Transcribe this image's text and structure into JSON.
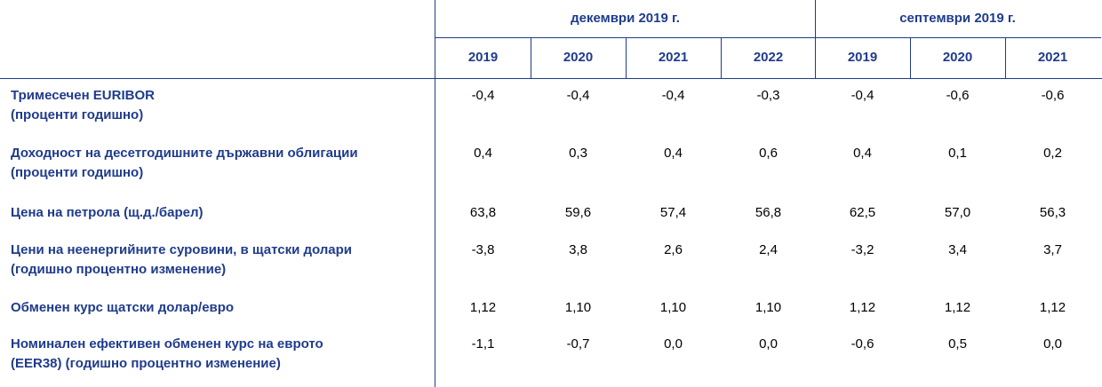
{
  "table": {
    "groups": [
      "декември 2019 г.",
      "септември 2019 г."
    ],
    "years": [
      "2019",
      "2020",
      "2021",
      "2022",
      "2019",
      "2020",
      "2021"
    ],
    "rows": [
      {
        "label": [
          "Тримесечен EURIBOR",
          "(проценти годишно)"
        ],
        "values": [
          "-0,4",
          "-0,4",
          "-0,4",
          "-0,3",
          "-0,4",
          "-0,6",
          "-0,6"
        ]
      },
      {
        "label": [
          "Доходност на десетгодишните държавни облигации",
          "(проценти годишно)"
        ],
        "values": [
          "0,4",
          "0,3",
          "0,4",
          "0,6",
          "0,4",
          "0,1",
          "0,2"
        ]
      },
      {
        "label": [
          "Цена на петрола (щ.д./барел)"
        ],
        "values": [
          "63,8",
          "59,6",
          "57,4",
          "56,8",
          "62,5",
          "57,0",
          "56,3"
        ]
      },
      {
        "label": [
          "Цени на неенергийните суровини, в щатски долари",
          "(годишно процентно изменение)"
        ],
        "values": [
          "-3,8",
          "3,8",
          "2,6",
          "2,4",
          "-3,2",
          "3,4",
          "3,7"
        ]
      },
      {
        "label": [
          "Обменен курс щатски долар/евро"
        ],
        "values": [
          "1,12",
          "1,10",
          "1,10",
          "1,10",
          "1,12",
          "1,12",
          "1,12"
        ]
      },
      {
        "label": [
          "Номинален ефективен обменен курс на еврото",
          "(EER38) (годишно процентно изменение)"
        ],
        "values": [
          "-1,1",
          "-0,7",
          "0,0",
          "0,0",
          "-0,6",
          "0,5",
          "0,0"
        ]
      }
    ]
  }
}
